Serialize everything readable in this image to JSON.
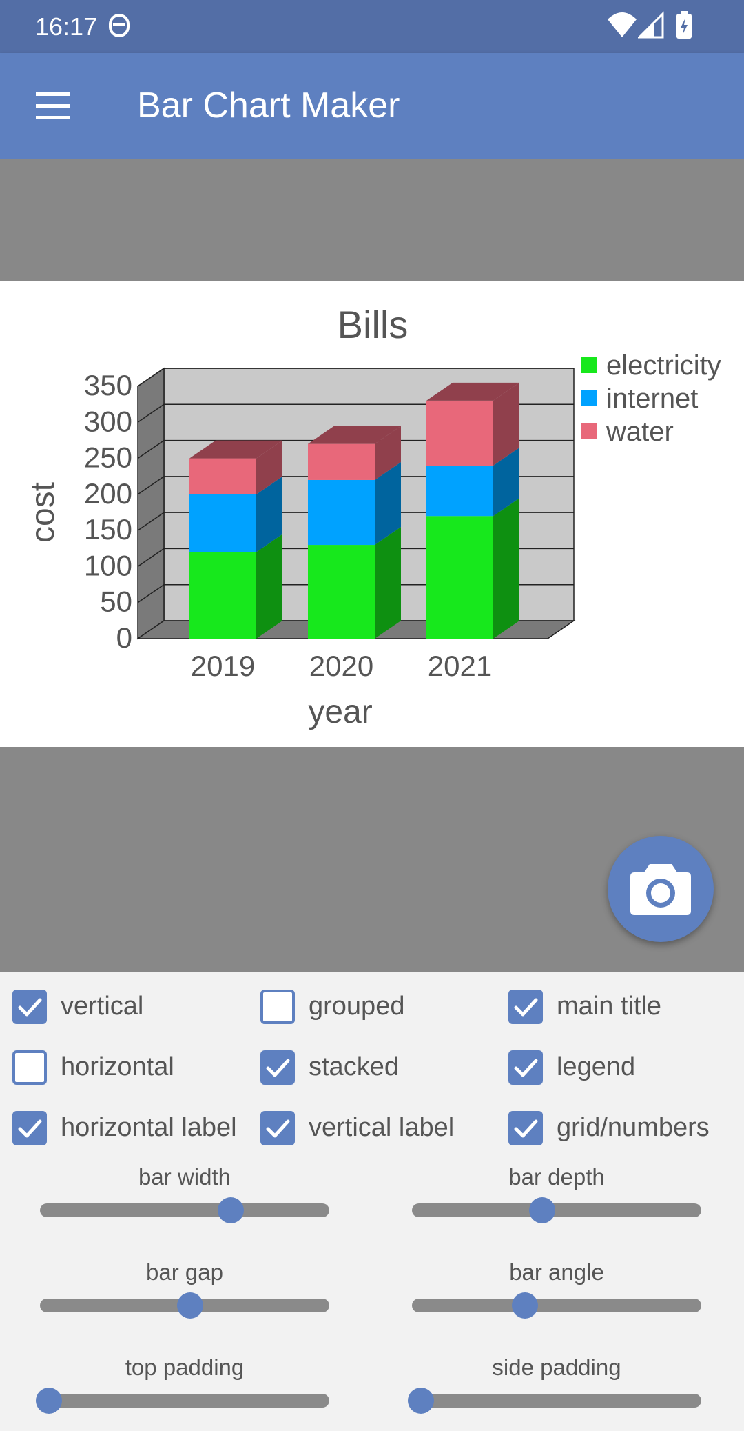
{
  "status_bar": {
    "time": "16:17"
  },
  "app_bar": {
    "title": "Bar Chart Maker"
  },
  "chart_data": {
    "type": "bar",
    "stacked": true,
    "three_d": true,
    "title": "Bills",
    "xlabel": "year",
    "ylabel": "cost",
    "categories": [
      "2019",
      "2020",
      "2021"
    ],
    "ylim": [
      0,
      350
    ],
    "yticks": [
      "0",
      "50",
      "100",
      "150",
      "200",
      "250",
      "300",
      "350"
    ],
    "grid": true,
    "legend_position": "right",
    "series": [
      {
        "name": "electricity",
        "color": "#17e81c",
        "values": [
          120,
          130,
          170
        ]
      },
      {
        "name": "internet",
        "color": "#00a2ff",
        "values": [
          80,
          90,
          70
        ]
      },
      {
        "name": "water",
        "color": "#e8687a",
        "values": [
          50,
          50,
          90
        ]
      }
    ]
  },
  "options": {
    "vertical": {
      "label": "vertical",
      "checked": true
    },
    "grouped": {
      "label": "grouped",
      "checked": false
    },
    "main_title": {
      "label": "main title",
      "checked": true
    },
    "horizontal": {
      "label": "horizontal",
      "checked": false
    },
    "stacked": {
      "label": "stacked",
      "checked": true
    },
    "legend": {
      "label": "legend",
      "checked": true
    },
    "horizontal_label": {
      "label": "horizontal label",
      "checked": true
    },
    "vertical_label": {
      "label": "vertical label",
      "checked": true
    },
    "grid_numbers": {
      "label": "grid/numbers",
      "checked": true
    }
  },
  "sliders": {
    "bar_width": {
      "label": "bar width",
      "value": 0.66
    },
    "bar_depth": {
      "label": "bar depth",
      "value": 0.45
    },
    "bar_gap": {
      "label": "bar gap",
      "value": 0.52
    },
    "bar_angle": {
      "label": "bar angle",
      "value": 0.39
    },
    "top_padding": {
      "label": "top padding",
      "value": 0.03
    },
    "side_padding": {
      "label": "side padding",
      "value": 0.03
    }
  },
  "colors": {
    "primary": "#5e80c0",
    "status_bar": "#536ea6",
    "backdrop": "#888888"
  },
  "icons": {
    "menu": "hamburger-menu-icon",
    "camera": "camera-icon"
  }
}
